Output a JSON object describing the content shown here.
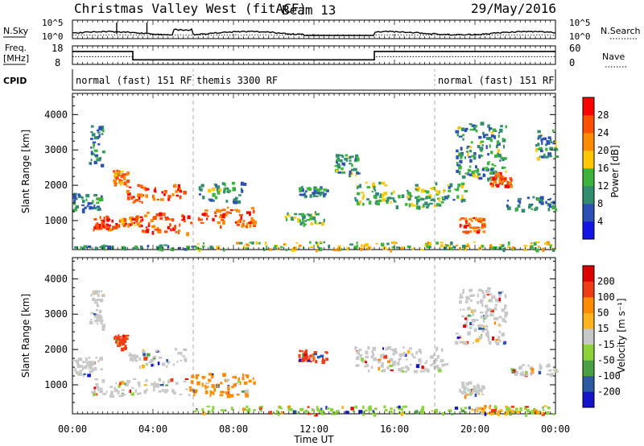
{
  "chart_data": {
    "type": "heatmap",
    "header": {
      "title": "Christmas Valley West (fitACF)",
      "beam": "Beam 13",
      "date": "29/May/2016"
    },
    "strip_labels": {
      "nsky": "N.Sky",
      "nsearch": "N.Search",
      "freq": "Freq.",
      "freq_unit": "[MHz]",
      "nave": "Nave",
      "cpid": "CPID",
      "nsky_ticks": [
        "10^5",
        "10^0"
      ],
      "nsearch_ticks": [
        "10^5",
        "10^0"
      ],
      "freq_ticks": [
        "18",
        "8"
      ],
      "nave_ticks": [
        "60",
        "0"
      ]
    },
    "cpid_segments": [
      {
        "start": 0,
        "end": 6,
        "label": "normal (fast) 151 RF"
      },
      {
        "start": 6,
        "end": 18,
        "label": "themis 3300 RF"
      },
      {
        "start": 18,
        "end": 24,
        "label": "normal (fast) 151 RF"
      }
    ],
    "freq_trace": [
      [
        0,
        15
      ],
      [
        3,
        15
      ],
      [
        3,
        10.5
      ],
      [
        15,
        10.5
      ],
      [
        15,
        15
      ],
      [
        24,
        15
      ]
    ],
    "nave_trace": [
      [
        0,
        25
      ],
      [
        3,
        25
      ],
      [
        3,
        15
      ],
      [
        15,
        15
      ],
      [
        15,
        25
      ],
      [
        24,
        25
      ]
    ],
    "x_axis": {
      "label": "Time UT",
      "ticks": [
        "00:00",
        "04:00",
        "08:00",
        "12:00",
        "16:00",
        "20:00",
        "00:00"
      ],
      "range_hours": [
        0,
        24
      ]
    },
    "y_axis": {
      "label": "Slant Range [km]",
      "ticks": [
        1000,
        2000,
        3000,
        4000
      ],
      "range": [
        180,
        4600
      ]
    },
    "power_panel": {
      "colorbar_label": "Power [dB]",
      "colorbar_ticks": [
        4,
        8,
        12,
        16,
        20,
        24,
        28
      ],
      "colors": [
        "#1414e6",
        "#2d50b4",
        "#328c6e",
        "#3cb43c",
        "#ffc800",
        "#ff8c00",
        "#ff5000",
        "#ff0000"
      ],
      "regions": [
        {
          "t": [
            0.9,
            2.1
          ],
          "r": [
            700,
            1150
          ],
          "v": 0.9
        },
        {
          "t": [
            2.1,
            3.3
          ],
          "r": [
            850,
            1150
          ],
          "v": 0.75
        },
        {
          "t": [
            3.3,
            5.8
          ],
          "r": [
            650,
            1250
          ],
          "v": 0.85
        },
        {
          "t": [
            5.8,
            9.0
          ],
          "r": [
            850,
            1400
          ],
          "v": 0.8
        },
        {
          "t": [
            2.6,
            5.6
          ],
          "r": [
            1550,
            2050
          ],
          "v": 0.85
        },
        {
          "t": [
            2.0,
            2.7
          ],
          "r": [
            2050,
            2450
          ],
          "v": 0.7
        },
        {
          "t": [
            0.0,
            1.4
          ],
          "r": [
            1300,
            1800
          ],
          "v": 0.3
        },
        {
          "t": [
            6.2,
            8.5
          ],
          "r": [
            1500,
            2100
          ],
          "v": 0.35
        },
        {
          "t": [
            0.8,
            1.5
          ],
          "r": [
            2600,
            3700
          ],
          "v": 0.3
        },
        {
          "t": [
            10.5,
            12.5
          ],
          "r": [
            900,
            1300
          ],
          "v": 0.45
        },
        {
          "t": [
            11.2,
            12.6
          ],
          "r": [
            1700,
            2000
          ],
          "v": 0.3
        },
        {
          "t": [
            13.0,
            14.2
          ],
          "r": [
            2300,
            2900
          ],
          "v": 0.35
        },
        {
          "t": [
            14.0,
            15.5
          ],
          "r": [
            1500,
            2100
          ],
          "v": 0.45
        },
        {
          "t": [
            15.5,
            18.5
          ],
          "r": [
            1400,
            1900
          ],
          "v": 0.4
        },
        {
          "t": [
            17.0,
            19.5
          ],
          "r": [
            1600,
            2100
          ],
          "v": 0.4
        },
        {
          "t": [
            19.0,
            21.5
          ],
          "r": [
            2200,
            3800
          ],
          "v": 0.35
        },
        {
          "t": [
            20.5,
            21.8
          ],
          "r": [
            2000,
            2400
          ],
          "v": 0.8
        },
        {
          "t": [
            19.2,
            20.5
          ],
          "r": [
            700,
            1100
          ],
          "v": 0.8
        },
        {
          "t": [
            21.5,
            24.0
          ],
          "r": [
            1300,
            1700
          ],
          "v": 0.3
        },
        {
          "t": [
            23.0,
            24.0
          ],
          "r": [
            2800,
            3600
          ],
          "v": 0.35
        },
        {
          "t": [
            6.0,
            24.0
          ],
          "r": [
            200,
            420
          ],
          "v": 0.5
        },
        {
          "t": [
            0.0,
            6.0
          ],
          "r": [
            200,
            330
          ],
          "v": 0.35
        }
      ]
    },
    "velocity_panel": {
      "colorbar_label": "Velocity [m s⁻¹]",
      "colorbar_ticks": [
        "200",
        "100",
        "50",
        "15",
        "-15",
        "-50",
        "-100",
        "-200"
      ],
      "colors": [
        "#dc0000",
        "#f03c14",
        "#ff8c00",
        "#ffb41e",
        "#c8c8c8",
        "#8cd23c",
        "#4ba046",
        "#2d5aa0",
        "#1414c8"
      ],
      "regions": [
        {
          "t": [
            0.9,
            5.8
          ],
          "r": [
            700,
            1200
          ],
          "v": 0.5
        },
        {
          "t": [
            2.6,
            5.6
          ],
          "r": [
            1550,
            2050
          ],
          "v": 0.5
        },
        {
          "t": [
            2.0,
            2.7
          ],
          "r": [
            2050,
            2450
          ],
          "v": 0.2
        },
        {
          "t": [
            0.0,
            1.4
          ],
          "r": [
            1300,
            1800
          ],
          "v": 0.5
        },
        {
          "t": [
            5.8,
            9.0
          ],
          "r": [
            700,
            1350
          ],
          "v": 0.3
        },
        {
          "t": [
            0.8,
            1.5
          ],
          "r": [
            2600,
            3700
          ],
          "v": 0.5
        },
        {
          "t": [
            11.2,
            12.6
          ],
          "r": [
            1700,
            2000
          ],
          "v": 0.2
        },
        {
          "t": [
            14.0,
            18.5
          ],
          "r": [
            1400,
            2100
          ],
          "v": 0.5
        },
        {
          "t": [
            19.0,
            21.5
          ],
          "r": [
            2200,
            3800
          ],
          "v": 0.5
        },
        {
          "t": [
            19.2,
            20.5
          ],
          "r": [
            700,
            1100
          ],
          "v": 0.5
        },
        {
          "t": [
            21.5,
            24.0
          ],
          "r": [
            1300,
            1700
          ],
          "v": 0.5
        },
        {
          "t": [
            6.0,
            24.0
          ],
          "r": [
            200,
            420
          ],
          "v": 0.65
        },
        {
          "t": [
            20.0,
            23.5
          ],
          "r": [
            200,
            450
          ],
          "v": 0.35
        }
      ]
    },
    "dashed_markers_hours": [
      6,
      18
    ]
  }
}
